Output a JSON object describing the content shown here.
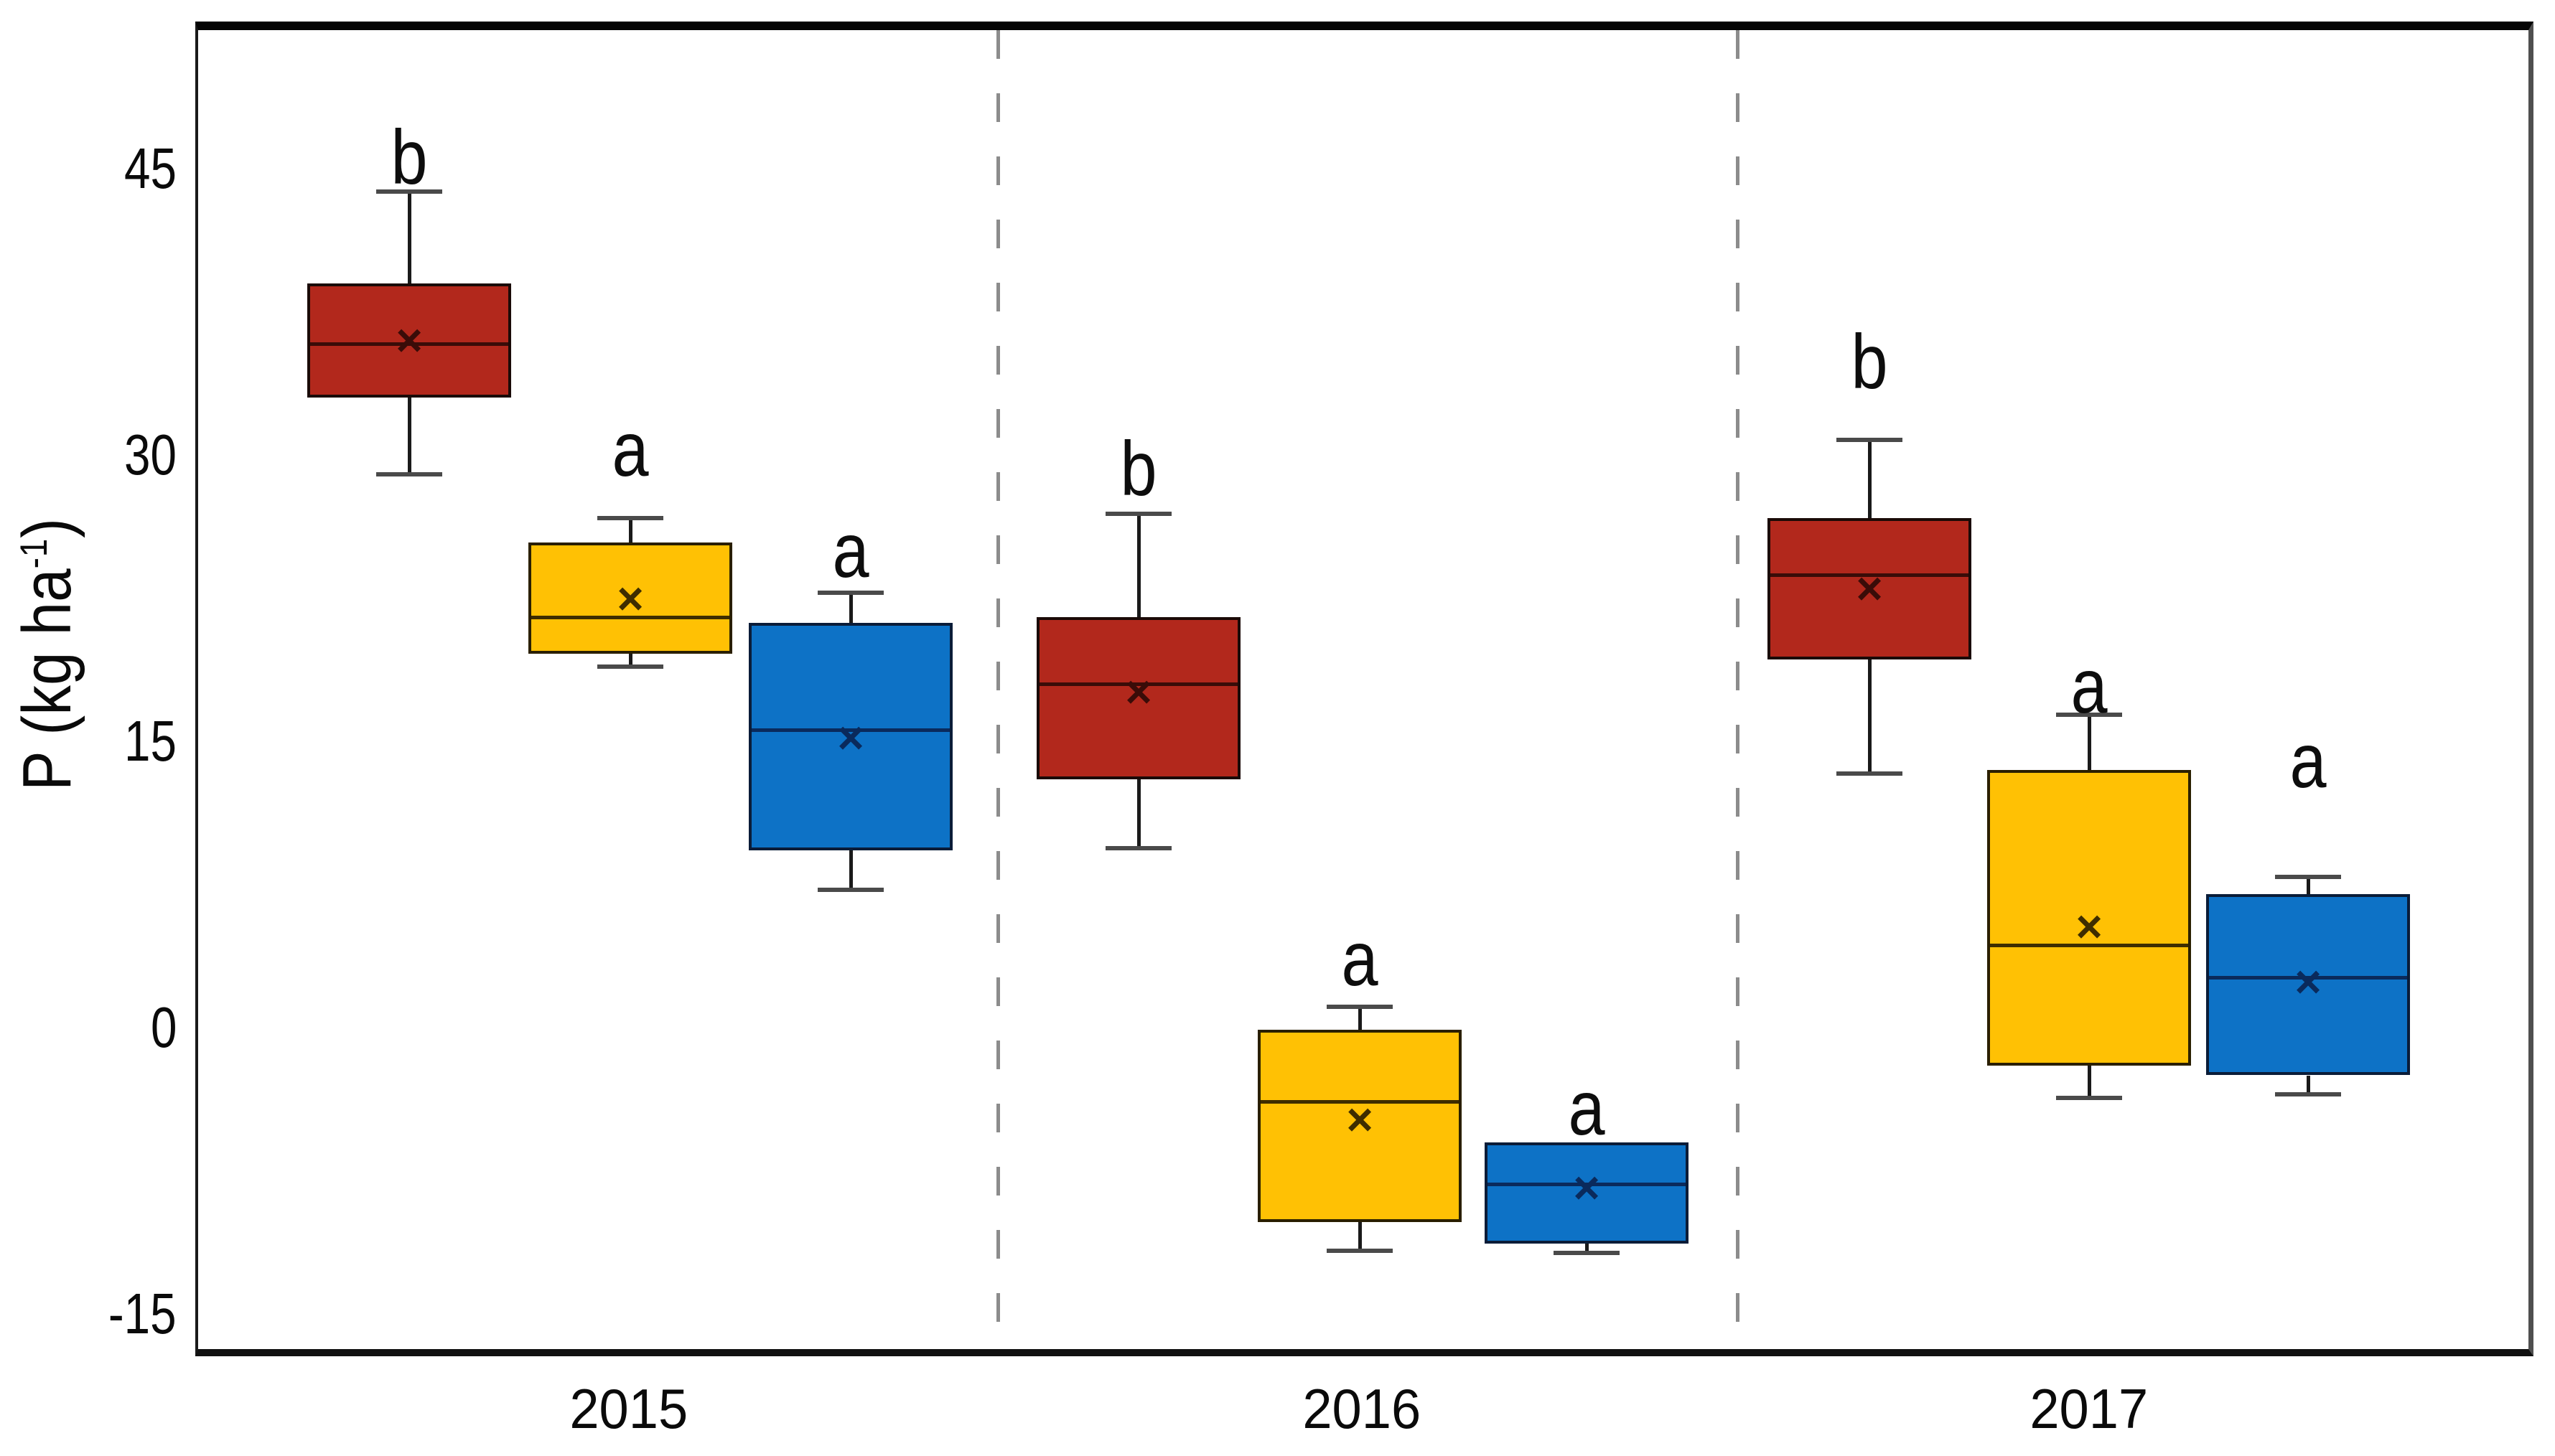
{
  "axis": {
    "y_title_prefix": "P (kg ha",
    "y_title_sup": "-1",
    "y_title_suffix": ")",
    "y_ticks": [
      "45",
      "30",
      "15",
      "0",
      "-15"
    ],
    "x_labels": [
      "2015",
      "2016",
      "2017"
    ]
  },
  "chart_data": {
    "type": "boxplot",
    "title": "",
    "xlabel": "",
    "ylabel": "P (kg ha-1)",
    "categories": [
      "2015",
      "2016",
      "2017"
    ],
    "yticks": [
      45,
      30,
      15,
      0,
      -15
    ],
    "ylim": [
      -17.2,
      52.7
    ],
    "grid": false,
    "legend": "none",
    "group_separators": "dashed vertical lines between year groups",
    "series_order": [
      "red",
      "yellow",
      "blue"
    ],
    "series_styles": {
      "red": {
        "fill": "#B2281C",
        "border": "#1A0A07",
        "median": "#3A0C08",
        "mean": "#3A0C08"
      },
      "yellow": {
        "fill": "#FFC104",
        "border": "#2A1F00",
        "median": "#3E2D00",
        "mean": "#3E2D00"
      },
      "blue": {
        "fill": "#0D72C6",
        "border": "#0A1C38",
        "median": "#0A2A5C",
        "mean": "#0A2A5C"
      }
    },
    "groups": [
      {
        "category": "2015",
        "boxes": [
          {
            "series": "red",
            "letter": "b",
            "low": 29.0,
            "q1": 33.0,
            "median": 35.8,
            "mean": 36.0,
            "q3": 39.0,
            "high": 43.8,
            "letter_value": 45.6
          },
          {
            "series": "yellow",
            "letter": "a",
            "low": 18.9,
            "q1": 19.6,
            "median": 21.5,
            "mean": 22.5,
            "q3": 25.4,
            "high": 26.7,
            "letter_value": 30.3
          },
          {
            "series": "blue",
            "letter": "a",
            "low": 7.2,
            "q1": 9.3,
            "median": 15.6,
            "mean": 15.2,
            "q3": 21.2,
            "high": 22.8,
            "letter_value": 25.0
          }
        ]
      },
      {
        "category": "2016",
        "boxes": [
          {
            "series": "red",
            "letter": "b",
            "low": 9.4,
            "q1": 13.0,
            "median": 18.0,
            "mean": 17.6,
            "q3": 21.5,
            "high": 26.9,
            "letter_value": 29.3
          },
          {
            "series": "yellow",
            "letter": "a",
            "low": -11.7,
            "q1": -10.2,
            "median": -3.9,
            "mean": -4.8,
            "q3": -0.1,
            "high": 1.1,
            "letter_value": 3.6
          },
          {
            "series": "blue",
            "letter": "a",
            "low": -11.8,
            "q1": -11.3,
            "median": -8.2,
            "mean": -8.4,
            "q3": -6.0,
            "high": null,
            "letter_value": -4.2
          }
        ]
      },
      {
        "category": "2017",
        "boxes": [
          {
            "series": "red",
            "letter": "b",
            "low": 13.3,
            "q1": 19.3,
            "median": 23.7,
            "mean": 23.0,
            "q3": 26.7,
            "high": 30.8,
            "letter_value": 34.9
          },
          {
            "series": "yellow",
            "letter": "a",
            "low": -3.7,
            "q1": -2.0,
            "median": 4.3,
            "mean": 5.3,
            "q3": 13.5,
            "high": 16.4,
            "letter_value": 17.9
          },
          {
            "series": "blue",
            "letter": "a",
            "low": -3.5,
            "q1": -2.5,
            "median": 2.6,
            "mean": 2.4,
            "q3": 7.0,
            "high": 7.9,
            "letter_value": 14.0
          }
        ]
      }
    ]
  }
}
